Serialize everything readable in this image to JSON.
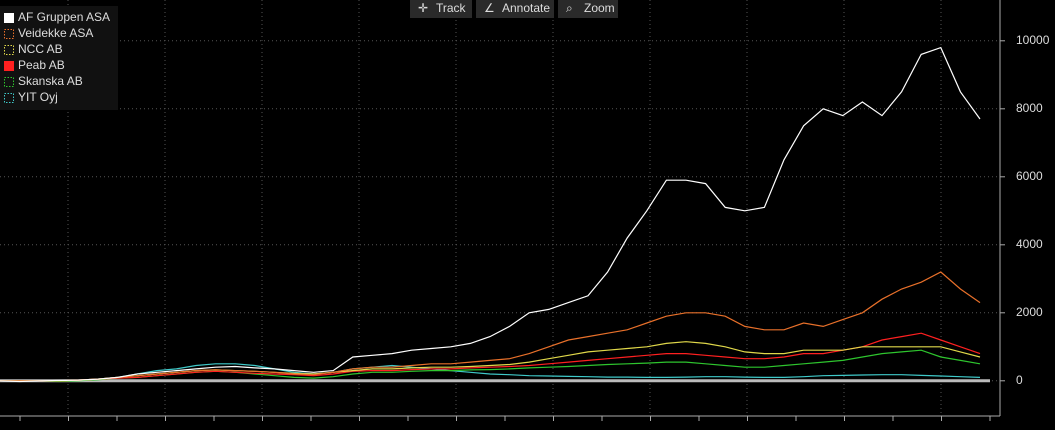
{
  "toolbar": [
    "Track",
    "Annotate",
    "Zoom"
  ],
  "chart_data": {
    "type": "line",
    "ylim": [
      -1300,
      11200
    ],
    "yticks": [
      0,
      2000,
      4000,
      6000,
      8000,
      10000
    ],
    "grid": true,
    "legend": "top-left",
    "series": [
      {
        "name": "AF Gruppen ASA",
        "color": "#ffffff",
        "swatch": "solid",
        "values": [
          0,
          -20,
          0,
          10,
          20,
          50,
          100,
          200,
          250,
          300,
          350,
          400,
          420,
          380,
          350,
          300,
          250,
          300,
          700,
          750,
          800,
          900,
          950,
          1000,
          1100,
          1300,
          1600,
          2000,
          2100,
          2300,
          2500,
          3200,
          4200,
          5000,
          5900,
          5900,
          5800,
          5100,
          5000,
          5100,
          6500,
          7500,
          8000,
          7800,
          8200,
          7800,
          8500,
          9600,
          9800,
          8500,
          7700
        ]
      },
      {
        "name": "Veidekke ASA",
        "color": "#e8702a",
        "swatch": "dotted",
        "values": [
          0,
          0,
          0,
          0,
          20,
          50,
          100,
          150,
          200,
          250,
          300,
          320,
          300,
          280,
          250,
          200,
          180,
          250,
          350,
          400,
          400,
          450,
          500,
          500,
          550,
          600,
          650,
          800,
          1000,
          1200,
          1300,
          1400,
          1500,
          1700,
          1900,
          2000,
          2000,
          1900,
          1600,
          1500,
          1500,
          1700,
          1600,
          1800,
          2000,
          2400,
          2700,
          2900,
          3200,
          2700,
          2300
        ]
      },
      {
        "name": "NCC AB",
        "color": "#e0d84a",
        "swatch": "dotted",
        "values": [
          0,
          0,
          0,
          0,
          20,
          50,
          100,
          150,
          200,
          250,
          300,
          320,
          300,
          280,
          250,
          220,
          200,
          250,
          300,
          350,
          350,
          380,
          400,
          400,
          420,
          450,
          480,
          550,
          650,
          750,
          850,
          900,
          950,
          1000,
          1100,
          1150,
          1100,
          1000,
          850,
          800,
          800,
          900,
          900,
          900,
          1000,
          1000,
          1000,
          1000,
          1000,
          850,
          700
        ]
      },
      {
        "name": "Peab AB",
        "color": "#ff2020",
        "swatch": "solid",
        "values": [
          0,
          0,
          0,
          0,
          20,
          50,
          80,
          100,
          150,
          200,
          250,
          280,
          250,
          220,
          200,
          180,
          150,
          200,
          280,
          300,
          300,
          330,
          350,
          350,
          380,
          400,
          420,
          450,
          500,
          550,
          600,
          650,
          700,
          750,
          800,
          800,
          750,
          700,
          650,
          650,
          700,
          800,
          800,
          900,
          1000,
          1200,
          1300,
          1400,
          1200,
          1000,
          800
        ]
      },
      {
        "name": "Skanska AB",
        "color": "#2ec52e",
        "swatch": "dotted",
        "values": [
          0,
          0,
          0,
          -20,
          0,
          30,
          80,
          100,
          150,
          200,
          250,
          280,
          250,
          200,
          150,
          100,
          80,
          120,
          200,
          250,
          250,
          280,
          300,
          300,
          320,
          330,
          350,
          380,
          400,
          420,
          450,
          480,
          500,
          520,
          550,
          550,
          500,
          450,
          400,
          400,
          450,
          500,
          550,
          600,
          700,
          800,
          850,
          900,
          700,
          600,
          500
        ]
      },
      {
        "name": "YIT Oyj",
        "color": "#3fc9c9",
        "swatch": "dotted",
        "values": [
          0,
          0,
          0,
          0,
          20,
          50,
          100,
          200,
          300,
          350,
          450,
          500,
          500,
          450,
          350,
          250,
          200,
          250,
          350,
          400,
          450,
          400,
          350,
          300,
          250,
          200,
          180,
          150,
          140,
          130,
          120,
          110,
          110,
          100,
          100,
          110,
          120,
          120,
          110,
          100,
          100,
          120,
          150,
          160,
          170,
          180,
          180,
          160,
          140,
          120,
          100
        ]
      }
    ]
  }
}
